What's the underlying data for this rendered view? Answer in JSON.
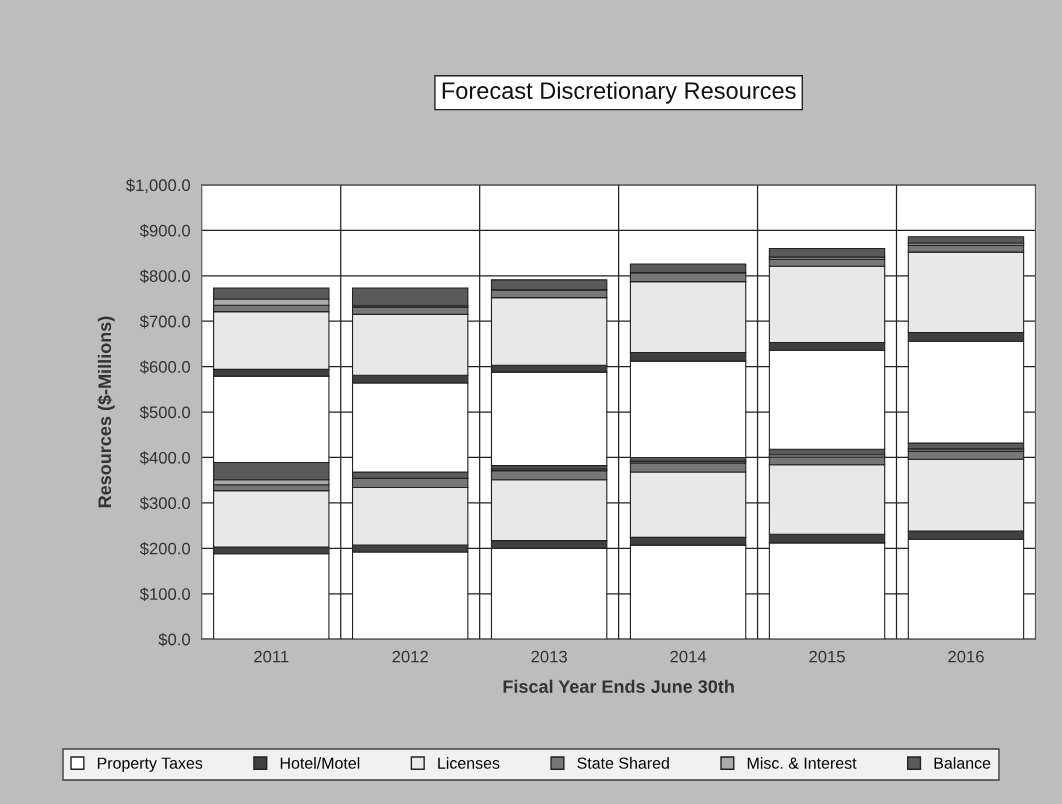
{
  "chart_data": {
    "type": "bar",
    "title": "Forecast Discretionary Resources",
    "xlabel": "Fiscal Year Ends June 30th",
    "ylabel": "Resources ($-Millions)",
    "categories": [
      "2011",
      "2012",
      "2013",
      "2014",
      "2015",
      "2016"
    ],
    "stacked": true,
    "series": [
      {
        "name": "Property Taxes",
        "color": "#ffffff",
        "values": [
          188,
          192,
          200,
          207,
          212,
          220
        ]
      },
      {
        "name": "Hotel/Motel",
        "color": "#404040",
        "values": [
          15,
          15,
          17,
          17,
          19,
          18
        ]
      },
      {
        "name": "Licenses",
        "color": "#e8e8e8",
        "values": [
          124,
          127,
          134,
          144,
          153,
          158
        ]
      },
      {
        "name": "State Shared",
        "color": "#777777",
        "values": [
          13,
          20,
          20,
          20,
          17,
          18
        ]
      },
      {
        "name": "Misc. & Interest",
        "color": "#aaaaaa",
        "values": [
          11,
          null,
          4,
          4,
          5,
          5
        ]
      },
      {
        "name": "Balance",
        "color": "#5a5a5a",
        "values": [
          38,
          14,
          7,
          8,
          12,
          13
        ]
      },
      {
        "color": "#ffffff",
        "values": [
          190,
          196,
          206,
          212,
          218,
          224
        ]
      },
      {
        "color": "#404040",
        "values": [
          15,
          17,
          15,
          19,
          17,
          19
        ]
      },
      {
        "color": "#e8e8e8",
        "values": [
          127,
          134,
          149,
          156,
          168,
          177
        ]
      },
      {
        "color": "#777777",
        "values": [
          14,
          16,
          17,
          20,
          15,
          15
        ]
      },
      {
        "color": "#aaaaaa",
        "values": [
          14,
          3,
          null,
          null,
          5,
          5
        ]
      },
      {
        "color": "#5a5a5a",
        "values": [
          24,
          39,
          22,
          19,
          19,
          14
        ]
      }
    ],
    "ylim": [
      0,
      1000
    ],
    "yticks": [
      {
        "value": 0,
        "label": "$0.0"
      },
      {
        "value": 100,
        "label": "$100.0"
      },
      {
        "value": 200,
        "label": "$200.0"
      },
      {
        "value": 300,
        "label": "$300.0"
      },
      {
        "value": 400,
        "label": "$400.0"
      },
      {
        "value": 500,
        "label": "$500.0"
      },
      {
        "value": 600,
        "label": "$600.0"
      },
      {
        "value": 700,
        "label": "$700.0"
      },
      {
        "value": 800,
        "label": "$800.0"
      },
      {
        "value": 900,
        "label": "$900.0"
      },
      {
        "value": 1000,
        "label": "$1,000.0"
      }
    ],
    "grid": "y",
    "legend": "bottom"
  }
}
